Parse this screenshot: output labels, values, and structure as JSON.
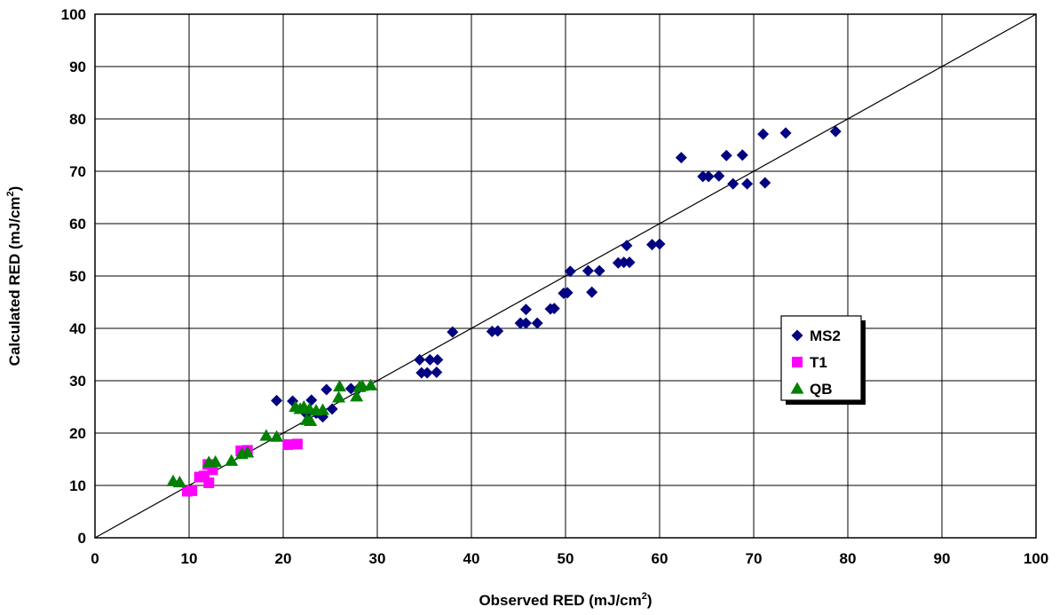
{
  "chart_data": {
    "type": "scatter",
    "xlabel": "Observed RED (mJ/cm",
    "xlabel_sup": "2",
    "xlabel_end": ")",
    "ylabel": "Calculated RED (mJ/cm",
    "ylabel_sup": "2",
    "ylabel_end": ")",
    "xlim": [
      0,
      100
    ],
    "ylim": [
      0,
      100
    ],
    "xticks": [
      0,
      10,
      20,
      30,
      40,
      50,
      60,
      70,
      80,
      90,
      100
    ],
    "yticks": [
      0,
      10,
      20,
      30,
      40,
      50,
      60,
      70,
      80,
      90,
      100
    ],
    "grid": true,
    "legend_position": "right",
    "reference_line": {
      "x": [
        0,
        100
      ],
      "y": [
        0,
        100
      ],
      "color": "#000000"
    },
    "series": [
      {
        "name": "MS2",
        "marker": "diamond",
        "color": "#000080",
        "points": [
          [
            19.3,
            26.2
          ],
          [
            21.0,
            26.1
          ],
          [
            22.5,
            23.6
          ],
          [
            23.0,
            26.3
          ],
          [
            23.5,
            23.8
          ],
          [
            24.2,
            23.1
          ],
          [
            24.6,
            28.3
          ],
          [
            25.2,
            24.6
          ],
          [
            27.2,
            28.5
          ],
          [
            28.0,
            28.5
          ],
          [
            34.5,
            34.0
          ],
          [
            34.7,
            31.5
          ],
          [
            35.3,
            31.5
          ],
          [
            35.6,
            34.0
          ],
          [
            36.3,
            31.6
          ],
          [
            36.4,
            34.0
          ],
          [
            38.0,
            39.3
          ],
          [
            42.2,
            39.4
          ],
          [
            42.8,
            39.5
          ],
          [
            45.2,
            41.0
          ],
          [
            45.8,
            41.0
          ],
          [
            45.8,
            43.6
          ],
          [
            47.0,
            41.0
          ],
          [
            48.4,
            43.7
          ],
          [
            48.8,
            43.8
          ],
          [
            49.8,
            46.7
          ],
          [
            50.2,
            46.8
          ],
          [
            50.5,
            50.9
          ],
          [
            52.4,
            51.0
          ],
          [
            52.8,
            46.9
          ],
          [
            53.6,
            51.0
          ],
          [
            55.6,
            52.5
          ],
          [
            56.2,
            52.6
          ],
          [
            56.8,
            52.6
          ],
          [
            56.5,
            55.8
          ],
          [
            59.2,
            56.0
          ],
          [
            60.0,
            56.1
          ],
          [
            62.3,
            72.6
          ],
          [
            64.6,
            69.0
          ],
          [
            65.2,
            69.0
          ],
          [
            66.3,
            69.1
          ],
          [
            67.1,
            73.0
          ],
          [
            67.8,
            67.6
          ],
          [
            68.8,
            73.1
          ],
          [
            69.3,
            67.6
          ],
          [
            71.0,
            77.1
          ],
          [
            71.2,
            67.8
          ],
          [
            73.4,
            77.3
          ],
          [
            78.7,
            77.6
          ]
        ]
      },
      {
        "name": "T1",
        "marker": "square",
        "color": "#ff00ff",
        "points": [
          [
            9.8,
            8.9
          ],
          [
            10.3,
            9.0
          ],
          [
            11.1,
            11.6
          ],
          [
            11.6,
            11.8
          ],
          [
            12.1,
            10.5
          ],
          [
            12.0,
            14.0
          ],
          [
            12.5,
            13.0
          ],
          [
            15.5,
            16.6
          ],
          [
            16.2,
            16.7
          ],
          [
            20.5,
            17.8
          ],
          [
            21.5,
            17.9
          ]
        ]
      },
      {
        "name": "QB",
        "marker": "triangle",
        "color": "#008000",
        "points": [
          [
            8.3,
            10.8
          ],
          [
            9.0,
            10.6
          ],
          [
            12.1,
            14.4
          ],
          [
            12.8,
            14.5
          ],
          [
            14.5,
            14.7
          ],
          [
            15.6,
            16.0
          ],
          [
            16.2,
            16.3
          ],
          [
            18.2,
            19.5
          ],
          [
            19.3,
            19.3
          ],
          [
            21.3,
            25.0
          ],
          [
            21.8,
            24.6
          ],
          [
            22.2,
            25.0
          ],
          [
            22.5,
            22.5
          ],
          [
            22.9,
            22.3
          ],
          [
            22.8,
            24.6
          ],
          [
            23.5,
            24.3
          ],
          [
            24.2,
            24.4
          ],
          [
            25.9,
            26.8
          ],
          [
            26.0,
            28.9
          ],
          [
            27.8,
            27.0
          ],
          [
            28.1,
            28.8
          ],
          [
            28.4,
            29.0
          ],
          [
            29.3,
            29.1
          ]
        ]
      }
    ]
  }
}
